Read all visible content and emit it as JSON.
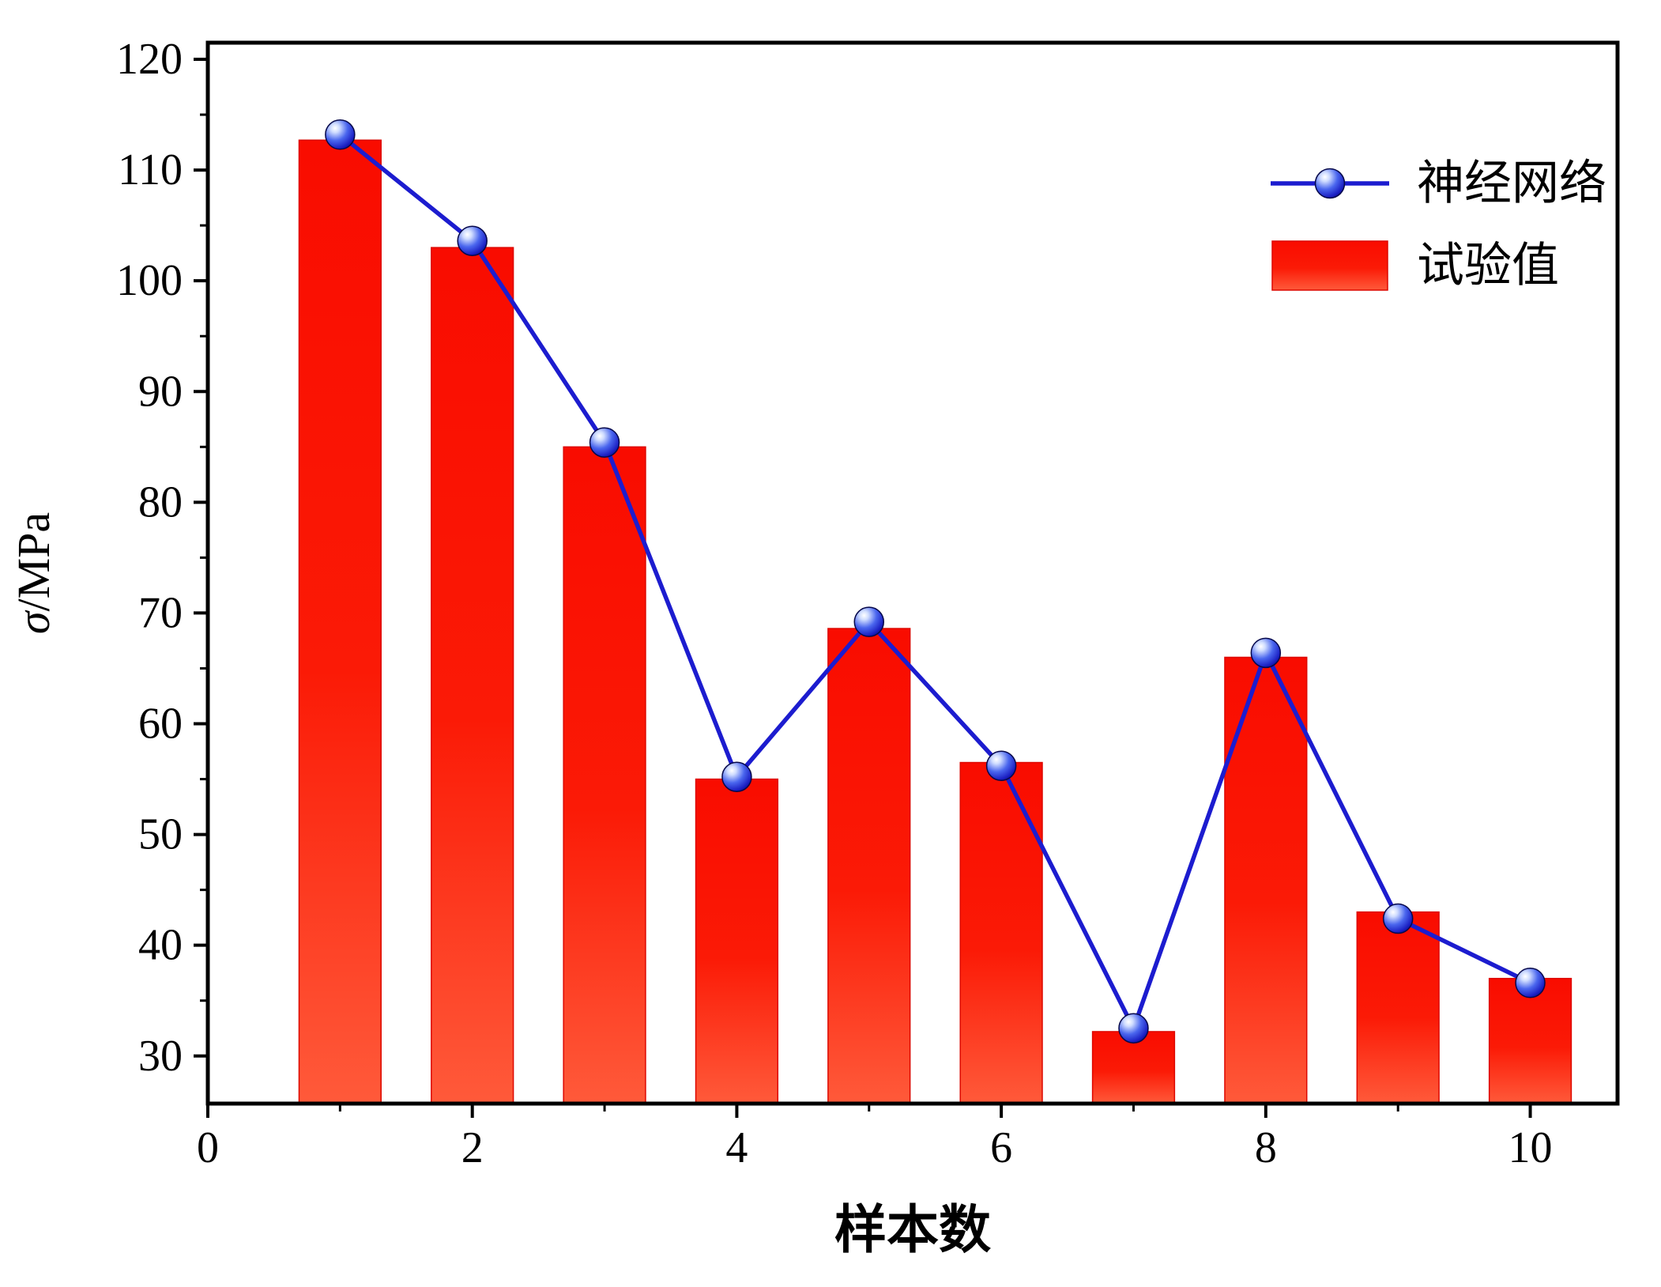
{
  "figure": {
    "background": "#ffffff",
    "axis_color": "#000000"
  },
  "chart_data": {
    "type": "bar",
    "combo": [
      "bar",
      "line"
    ],
    "title": "",
    "xlabel": "样本数",
    "ylabel": "σ/MPa",
    "categories": [
      1,
      2,
      3,
      4,
      5,
      6,
      7,
      8,
      9,
      10
    ],
    "series": [
      {
        "name": "试验值",
        "type": "bar",
        "color": "#ff1200",
        "values": [
          112.7,
          103.0,
          85.0,
          55.0,
          68.6,
          56.5,
          32.2,
          66.0,
          43.0,
          37.0
        ]
      },
      {
        "name": "神经网络",
        "type": "line",
        "color": "#1c1ccf",
        "marker": "sphere",
        "values": [
          113.2,
          103.6,
          85.4,
          55.2,
          69.2,
          56.2,
          32.5,
          66.4,
          42.4,
          36.6
        ]
      }
    ],
    "xlim": [
      0,
      10.66
    ],
    "ylim": [
      25.7,
      121.5
    ],
    "xticks": [
      0,
      2,
      4,
      6,
      8,
      10
    ],
    "xminor": [
      1,
      3,
      5,
      7,
      9
    ],
    "yticks": [
      30,
      40,
      50,
      60,
      70,
      80,
      90,
      100,
      110,
      120
    ],
    "yminor_step": 5,
    "bar_width": 0.62,
    "grid": false,
    "legend": {
      "position": "top-right",
      "items": [
        {
          "label": "神经网络",
          "swatch": "line-with-sphere-marker"
        },
        {
          "label": "试验值",
          "swatch": "red-rectangle"
        }
      ]
    }
  }
}
